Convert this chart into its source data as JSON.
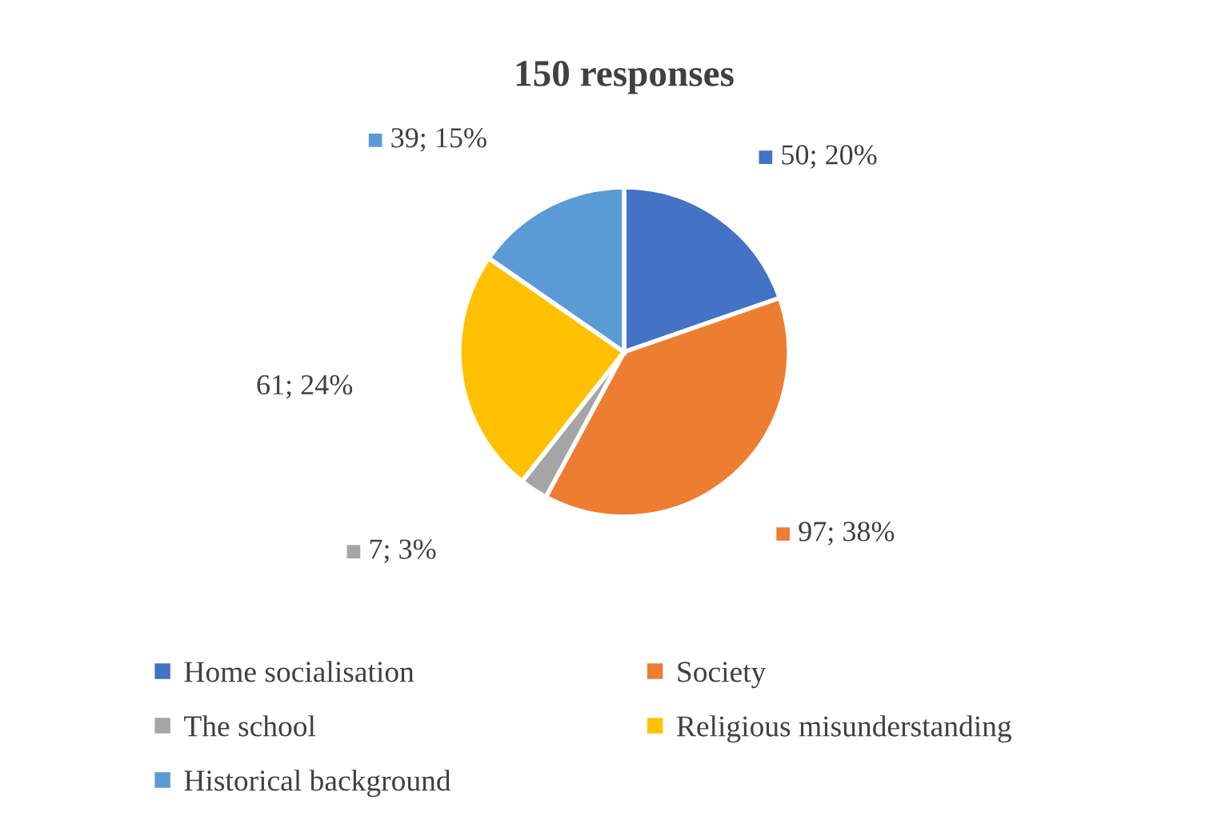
{
  "chart_data": {
    "type": "pie",
    "title": "150 responses",
    "categories": [
      "Home socialisation",
      "Society",
      "The school",
      "Religious misunderstanding",
      "Historical background"
    ],
    "values": [
      50,
      97,
      7,
      61,
      39
    ],
    "colors": [
      "#4472c4",
      "#ed7d31",
      "#a5a5a5",
      "#ffc000",
      "#5b9bd5"
    ],
    "value_labels": [
      "50; 20%",
      "97; 38%",
      "7; 3%",
      "61; 24%",
      "39; 15%"
    ],
    "legend": "bottom"
  }
}
